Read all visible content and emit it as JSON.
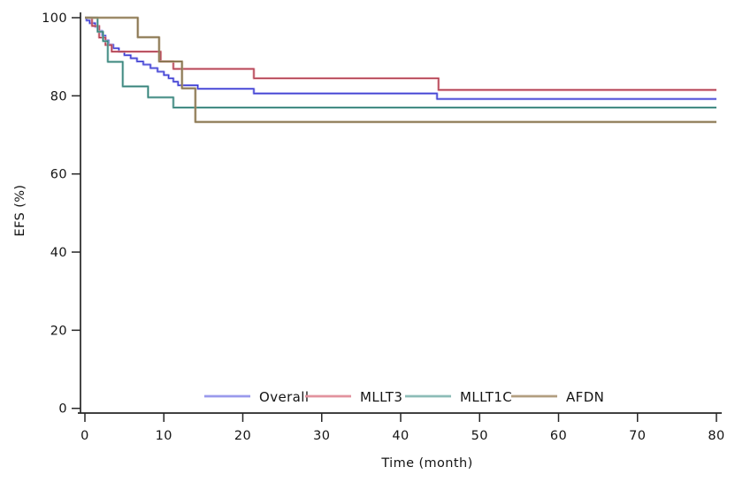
{
  "figure": {
    "background": "#ffffff"
  },
  "chart_data": {
    "type": "line",
    "subtype": "kaplan-meier-step-survival",
    "title": "",
    "xlabel": "Time (month)",
    "ylabel": "EFS (%)",
    "xlim": [
      0,
      80
    ],
    "ylim": [
      0,
      100
    ],
    "xticks": [
      0,
      10,
      20,
      30,
      40,
      50,
      60,
      70,
      80
    ],
    "yticks": [
      0,
      20,
      40,
      60,
      80,
      100
    ],
    "grid": false,
    "axis_color": "#262626",
    "legend_position": "inside-bottom-center",
    "series": [
      {
        "name": "Overall",
        "color": "#9a9aec",
        "core_color": "#3434cf",
        "points": [
          [
            0,
            100
          ],
          [
            0.2,
            99.3
          ],
          [
            0.6,
            98.6
          ],
          [
            1.3,
            97.7
          ],
          [
            1.8,
            96.6
          ],
          [
            2.2,
            95.4
          ],
          [
            2.6,
            94.2
          ],
          [
            3.0,
            93.1
          ],
          [
            3.6,
            92.2
          ],
          [
            4.3,
            91.3
          ],
          [
            5.0,
            90.4
          ],
          [
            5.8,
            89.6
          ],
          [
            6.6,
            88.8
          ],
          [
            7.4,
            88.0
          ],
          [
            8.3,
            87.1
          ],
          [
            9.2,
            86.2
          ],
          [
            10.0,
            85.3
          ],
          [
            10.6,
            84.5
          ],
          [
            11.2,
            83.6
          ],
          [
            11.8,
            82.7
          ],
          [
            14.3,
            81.8
          ],
          [
            21.4,
            80.6
          ],
          [
            44.6,
            79.2
          ],
          [
            80,
            79.2
          ]
        ]
      },
      {
        "name": "MLLT3",
        "color": "#e2939e",
        "core_color": "#a83345",
        "points": [
          [
            0,
            100
          ],
          [
            0.9,
            97.9
          ],
          [
            1.8,
            94.9
          ],
          [
            2.6,
            93.0
          ],
          [
            3.4,
            91.3
          ],
          [
            9.6,
            88.8
          ],
          [
            11.2,
            86.9
          ],
          [
            21.4,
            84.5
          ],
          [
            44.8,
            81.5
          ],
          [
            80,
            81.5
          ]
        ]
      },
      {
        "name": "MLLT1C",
        "color": "#8cbcb7",
        "core_color": "#28796f",
        "points": [
          [
            0,
            100
          ],
          [
            1.6,
            96.4
          ],
          [
            2.3,
            94.0
          ],
          [
            2.9,
            88.7
          ],
          [
            4.8,
            82.4
          ],
          [
            8.0,
            79.6
          ],
          [
            11.2,
            77.0
          ],
          [
            80,
            77.0
          ]
        ]
      },
      {
        "name": "AFDN",
        "color": "#b29e80",
        "core_color": "#7a683f",
        "points": [
          [
            0,
            100
          ],
          [
            6.7,
            95.0
          ],
          [
            9.4,
            88.8
          ],
          [
            12.3,
            81.9
          ],
          [
            14.0,
            73.3
          ],
          [
            80,
            73.3
          ]
        ]
      }
    ]
  }
}
